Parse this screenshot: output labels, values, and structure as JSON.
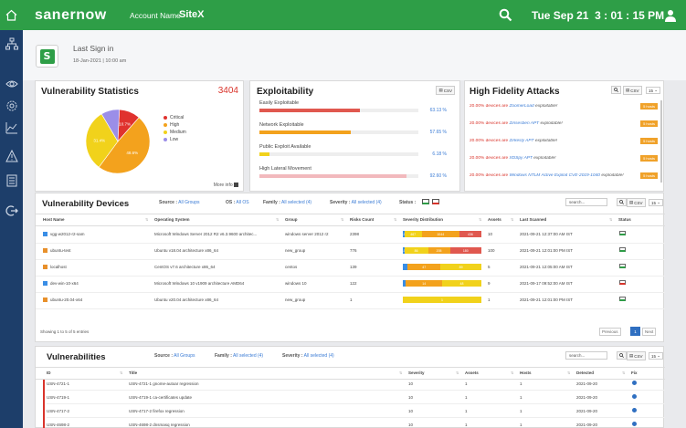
{
  "topbar": {
    "brand": "sanernow",
    "account_label": "Account Name",
    "account_name": "SiteX",
    "datetime": "Tue Sep 21  3 : 01 : 15 PM"
  },
  "signin": {
    "label": "Last Sign in",
    "value": "18-Jan-2021 | 10:00 am"
  },
  "vuln_stats": {
    "title": "Vulnerability Statistics",
    "total": "3404",
    "more": "More info",
    "chart_data": {
      "type": "pie",
      "slices": [
        {
          "name": "Critical",
          "value": 10.7,
          "label": "10.7%",
          "color": "#e0322e"
        },
        {
          "name": "High",
          "value": 48.6,
          "label": "48.6%",
          "color": "#f3a21d"
        },
        {
          "name": "Medium",
          "value": 31.4,
          "label": "31.4%",
          "color": "#f1d21b"
        },
        {
          "name": "Low",
          "value": 9.3,
          "label": "",
          "color": "#9b8ee8"
        }
      ]
    }
  },
  "exploitability": {
    "title": "Exploitability",
    "csv": "CSV",
    "items": [
      {
        "label": "Easily Exploitable",
        "value": "63.13 %",
        "pct": 63.13,
        "color": "#e0584f"
      },
      {
        "label": "Network Exploitable",
        "value": "57.65 %",
        "pct": 57.65,
        "color": "#f3a21d"
      },
      {
        "label": "Public Exploit Available",
        "value": "6.18 %",
        "pct": 6.18,
        "color": "#f1d21b"
      },
      {
        "label": "High Lateral Movement",
        "value": "92.60 %",
        "pct": 92.6,
        "color": "#f2b9bd"
      }
    ]
  },
  "hfa": {
    "title": "High Fidelity Attacks",
    "csv": "CSV",
    "page_size": "15",
    "items": [
      {
        "pct": "20.00%",
        "text": "devices are",
        "name": "ZoomerLoad",
        "suffix": "exploitable!",
        "tag": "5 hosts"
      },
      {
        "pct": "20.00%",
        "text": "devices are",
        "name": "Zinsesben APT",
        "suffix": "exploitable!",
        "tag": "5 hosts"
      },
      {
        "pct": "20.00%",
        "text": "devices are",
        "name": "Zirkesly APT",
        "suffix": "exploitable!",
        "tag": "5 hosts"
      },
      {
        "pct": "20.00%",
        "text": "devices are",
        "name": "XDSpy APT",
        "suffix": "exploitable!",
        "tag": "5 hosts"
      },
      {
        "pct": "20.00%",
        "text": "devices are",
        "name": "Windows NTLM Active Exploit CVE-2019-1040",
        "suffix": "exploitable!",
        "tag": "5 hosts"
      }
    ]
  },
  "devices": {
    "title": "Vulnerability Devices",
    "source_label": "Source :",
    "source_value": "All Groups",
    "os_label": "OS :",
    "os_value": "All OS",
    "family_label": "Family :",
    "family_value": "All selected (4)",
    "severity_label": "Severity :",
    "severity_value": "All selected (4)",
    "status_label": "Status :",
    "search_placeholder": "search...",
    "csv": "CSV",
    "page_size": "15",
    "columns": [
      "Host Name",
      "Operating System",
      "Group",
      "Risks Count",
      "Severity Distribution",
      "Assets",
      "Last Scanned",
      "Status"
    ],
    "rows": [
      {
        "host": "vgg-w2012-r2-sam",
        "os": "Microsoft Windows Server 2012 R2 v6.3.9600 architec...",
        "group": "windows server 2012 r2",
        "risks": "2398",
        "dist": [
          {
            "v": "10",
            "w": 2
          },
          {
            "v": "467",
            "w": 22
          },
          {
            "v": "1044",
            "w": 48
          },
          {
            "v": "436",
            "w": 28
          }
        ],
        "assets": "10",
        "scanned": "2021-09-21 12:37:00 AM IST",
        "status": "on",
        "os_icon": "win"
      },
      {
        "host": "ubuntu-test",
        "os": "Ubuntu v18.04 architecture x86_64",
        "group": "new_group",
        "risks": "776",
        "dist": [
          {
            "v": "10",
            "w": 2
          },
          {
            "v": "86",
            "w": 30
          },
          {
            "v": "205",
            "w": 28
          },
          {
            "v": "180",
            "w": 40
          }
        ],
        "assets": "100",
        "scanned": "2021-09-21 12:01:00 PM IST",
        "status": "on",
        "os_icon": "lin"
      },
      {
        "host": "localhost",
        "os": "CentOS v7.6 architecture x86_64",
        "group": "centos",
        "risks": "139",
        "dist": [
          {
            "v": "",
            "w": 6
          },
          {
            "v": "47",
            "w": 42
          },
          {
            "v": "89",
            "w": 52
          }
        ],
        "assets": "5",
        "scanned": "2021-09-21 12:05:00 AM IST",
        "status": "on",
        "os_icon": "lin"
      },
      {
        "host": "dev-win-10-x64",
        "os": "Microsoft Windows 10 v1909 architecture AMD64",
        "group": "windows 10",
        "risks": "122",
        "dist": [
          {
            "v": "",
            "w": 4
          },
          {
            "v": "14",
            "w": 46
          },
          {
            "v": "48",
            "w": 50
          }
        ],
        "assets": "9",
        "scanned": "2021-09-17 09:52:00 AM IST",
        "status": "off",
        "os_icon": "win"
      },
      {
        "host": "ubuntu-20.04-x64",
        "os": "Ubuntu v20.04 architecture x86_64",
        "group": "new_group",
        "risks": "1",
        "dist": [
          {
            "v": "1",
            "w": 100
          }
        ],
        "assets": "1",
        "scanned": "2021-09-21 12:01:00 PM IST",
        "status": "on",
        "os_icon": "lin"
      }
    ],
    "footer": "Showing 1 to 5 of 5 entries",
    "prev": "Previous",
    "page": "1",
    "next": "Next"
  },
  "vulns": {
    "title": "Vulnerabilities",
    "source_label": "Source :",
    "source_value": "All Groups",
    "family_label": "Family :",
    "family_value": "All selected (4)",
    "severity_label": "Severity :",
    "severity_value": "All selected (4)",
    "search_placeholder": "search...",
    "csv": "CSV",
    "page_size": "15",
    "columns": [
      "ID",
      "Title",
      "Severity",
      "Assets",
      "Hosts",
      "Detected",
      "Fix"
    ],
    "rows": [
      {
        "id": "USN-4721-1",
        "title": "USN-4721-1 gnome-autoar regression",
        "sev": "10",
        "assets": "1",
        "hosts": "1",
        "date": "2021-09-20"
      },
      {
        "id": "USN-4719-1",
        "title": "USN-4719-1 ca-certificates update",
        "sev": "10",
        "assets": "1",
        "hosts": "1",
        "date": "2021-09-20"
      },
      {
        "id": "USN-4717-2",
        "title": "USN-4717-2 firefox regression",
        "sev": "10",
        "assets": "1",
        "hosts": "1",
        "date": "2021-09-20"
      },
      {
        "id": "USN-4698-2",
        "title": "USN-4698-2 dnsmasq regression",
        "sev": "10",
        "assets": "1",
        "hosts": "1",
        "date": "2021-09-20"
      }
    ]
  }
}
